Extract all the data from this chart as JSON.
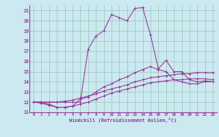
{
  "xlabel": "Windchill (Refroidissement éolien,°C)",
  "background_color": "#cce8f0",
  "grid_color": "#99ccbb",
  "line_color": "#993399",
  "xlim": [
    -0.5,
    23.5
  ],
  "ylim": [
    11,
    21.5
  ],
  "xticks": [
    0,
    1,
    2,
    3,
    4,
    5,
    6,
    7,
    8,
    9,
    10,
    11,
    12,
    13,
    14,
    15,
    16,
    17,
    18,
    19,
    20,
    21,
    22,
    23
  ],
  "yticks": [
    11,
    12,
    13,
    14,
    15,
    16,
    17,
    18,
    19,
    20,
    21
  ],
  "series": [
    [
      12.0,
      12.0,
      11.8,
      11.5,
      11.5,
      11.6,
      12.3,
      12.5,
      13.0,
      13.5,
      13.8,
      14.2,
      14.5,
      14.9,
      15.2,
      15.5,
      15.2,
      15.0,
      14.2,
      14.0,
      13.8,
      13.8,
      14.0,
      14.0
    ],
    [
      12.0,
      12.0,
      12.0,
      12.0,
      12.1,
      12.2,
      12.4,
      12.6,
      12.8,
      13.1,
      13.3,
      13.5,
      13.7,
      14.0,
      14.2,
      14.4,
      14.5,
      14.6,
      14.7,
      14.8,
      14.8,
      14.9,
      14.9,
      14.9
    ],
    [
      12.0,
      11.9,
      11.7,
      11.5,
      11.5,
      11.6,
      11.8,
      12.0,
      12.3,
      12.6,
      12.9,
      13.1,
      13.3,
      13.5,
      13.7,
      13.9,
      14.0,
      14.1,
      14.2,
      14.2,
      14.3,
      14.3,
      14.3,
      14.2
    ],
    [
      12.0,
      12.0,
      12.0,
      12.0,
      12.0,
      12.0,
      12.0,
      17.2,
      18.5,
      19.0,
      20.6,
      20.3,
      20.0,
      21.2,
      21.3,
      18.6,
      15.3,
      16.1,
      15.0,
      15.0,
      14.2,
      14.0,
      14.1,
      14.0
    ]
  ]
}
